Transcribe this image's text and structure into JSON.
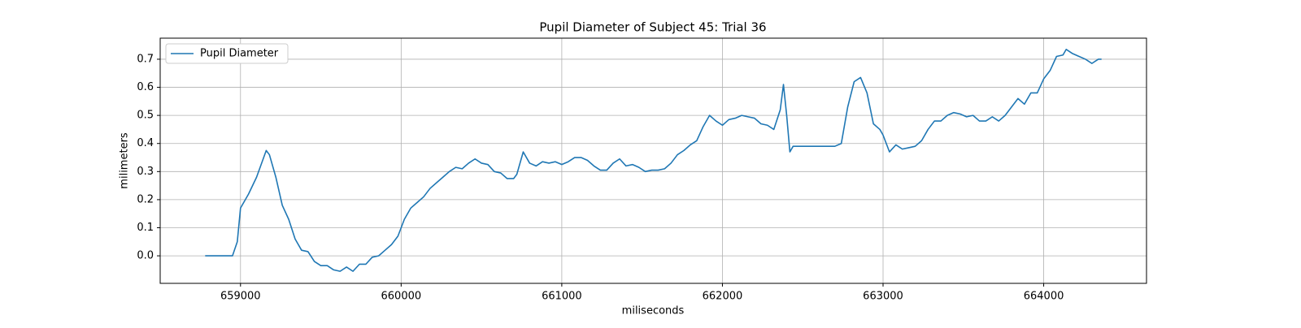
{
  "chart_data": {
    "type": "line",
    "title": "Pupil Diameter of Subject 45: Trial 36",
    "xlabel": "miliseconds",
    "ylabel": "milimeters",
    "x": [
      658780,
      658950,
      658980,
      659000,
      659050,
      659100,
      659160,
      659180,
      659220,
      659260,
      659300,
      659340,
      659380,
      659420,
      659460,
      659500,
      659540,
      659580,
      659620,
      659660,
      659700,
      659740,
      659780,
      659820,
      659860,
      659900,
      659940,
      659980,
      660020,
      660060,
      660100,
      660140,
      660180,
      660220,
      660260,
      660300,
      660340,
      660380,
      660420,
      660460,
      660500,
      660540,
      660580,
      660620,
      660660,
      660700,
      660720,
      660760,
      660800,
      660840,
      660880,
      660920,
      660960,
      661000,
      661040,
      661080,
      661120,
      661160,
      661200,
      661240,
      661280,
      661320,
      661360,
      661400,
      661440,
      661480,
      661520,
      661560,
      661600,
      661640,
      661680,
      661720,
      661760,
      661800,
      661840,
      661880,
      661920,
      661960,
      662000,
      662040,
      662080,
      662120,
      662160,
      662200,
      662240,
      662280,
      662320,
      662360,
      662380,
      662400,
      662420,
      662440,
      662500,
      662600,
      662700,
      662740,
      662780,
      662820,
      662860,
      662900,
      662940,
      662980,
      663000,
      663040,
      663080,
      663120,
      663160,
      663200,
      663240,
      663280,
      663320,
      663360,
      663400,
      663440,
      663480,
      663520,
      663560,
      663600,
      663640,
      663680,
      663720,
      663760,
      663800,
      663840,
      663880,
      663920,
      663960,
      664000,
      664040,
      664080,
      664120,
      664140,
      664180,
      664220,
      664260,
      664300,
      664340,
      664360
    ],
    "series": [
      {
        "name": "Pupil Diameter",
        "color": "#1f77b4",
        "values": [
          0,
          0,
          0.05,
          0.17,
          0.22,
          0.28,
          0.375,
          0.36,
          0.28,
          0.18,
          0.13,
          0.06,
          0.02,
          0.015,
          -0.02,
          -0.035,
          -0.035,
          -0.05,
          -0.055,
          -0.04,
          -0.055,
          -0.03,
          -0.03,
          -0.005,
          0,
          0.02,
          0.04,
          0.07,
          0.13,
          0.17,
          0.19,
          0.21,
          0.24,
          0.26,
          0.28,
          0.3,
          0.315,
          0.31,
          0.33,
          0.345,
          0.33,
          0.325,
          0.3,
          0.295,
          0.275,
          0.275,
          0.29,
          0.37,
          0.33,
          0.32,
          0.335,
          0.33,
          0.335,
          0.325,
          0.335,
          0.35,
          0.35,
          0.34,
          0.32,
          0.305,
          0.305,
          0.33,
          0.345,
          0.32,
          0.325,
          0.315,
          0.3,
          0.305,
          0.305,
          0.31,
          0.33,
          0.36,
          0.375,
          0.395,
          0.41,
          0.46,
          0.5,
          0.48,
          0.465,
          0.485,
          0.49,
          0.5,
          0.495,
          0.49,
          0.47,
          0.465,
          0.45,
          0.52,
          0.61,
          0.5,
          0.37,
          0.39,
          0.39,
          0.39,
          0.39,
          0.4,
          0.53,
          0.62,
          0.635,
          0.58,
          0.47,
          0.45,
          0.43,
          0.37,
          0.395,
          0.38,
          0.385,
          0.39,
          0.41,
          0.45,
          0.48,
          0.48,
          0.5,
          0.51,
          0.505,
          0.495,
          0.5,
          0.48,
          0.48,
          0.495,
          0.48,
          0.5,
          0.53,
          0.56,
          0.54,
          0.58,
          0.58,
          0.63,
          0.66,
          0.71,
          0.715,
          0.735,
          0.72,
          0.71,
          0.7,
          0.685,
          0.7,
          0.7
        ]
      }
    ],
    "xlim": [
      658500,
      664640
    ],
    "xticks": [
      659000,
      660000,
      661000,
      662000,
      663000,
      664000
    ],
    "ylim": [
      -0.098,
      0.775
    ],
    "yticks": [
      {
        "value": 0,
        "label": "0.0"
      },
      0.1,
      0.2,
      0.3,
      0.4,
      0.5,
      0.6,
      0.7
    ],
    "grid": true,
    "legend": "upper left"
  }
}
